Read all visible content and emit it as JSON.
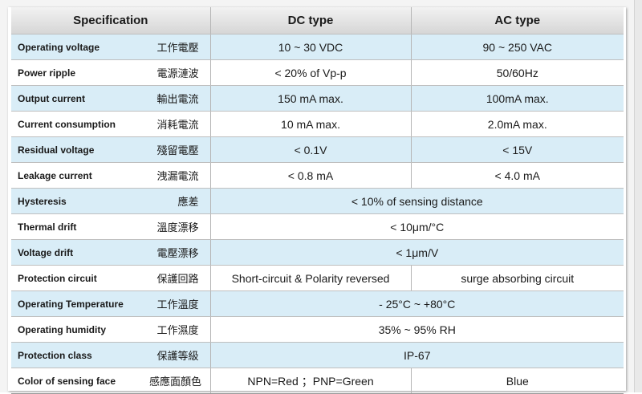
{
  "table": {
    "headers": {
      "spec": "Specification",
      "dc": "DC type",
      "ac": "AC type"
    },
    "rows": [
      {
        "en": "Operating voltage",
        "zh": "工作電壓",
        "dc": "10 ~ 30 VDC",
        "ac": "90 ~ 250 VAC"
      },
      {
        "en": "Power ripple",
        "zh": "電源漣波",
        "dc": "< 20% of Vp-p",
        "ac": "50/60Hz"
      },
      {
        "en": "Output current",
        "zh": "輸出電流",
        "dc": "150 mA max.",
        "ac": "100mA max."
      },
      {
        "en": "Current consumption",
        "zh": "消耗電流",
        "dc": "10 mA max.",
        "ac": "2.0mA max."
      },
      {
        "en": "Residual voltage",
        "zh": "殘留電壓",
        "dc": "< 0.1V",
        "ac": "< 15V"
      },
      {
        "en": "Leakage current",
        "zh": "洩漏電流",
        "dc": "< 0.8 mA",
        "ac": "< 4.0 mA"
      },
      {
        "en": "Hysteresis",
        "zh": "應差",
        "both": "< 10% of sensing distance"
      },
      {
        "en": "Thermal drift",
        "zh": "溫度漂移",
        "both": "< 10μm/°C"
      },
      {
        "en": "Voltage drift",
        "zh": "電壓漂移",
        "both": "< 1μm/V"
      },
      {
        "en": "Protection circuit",
        "zh": "保護回路",
        "dc": "Short-circuit & Polarity reversed",
        "ac": "surge absorbing circuit"
      },
      {
        "en": "Operating Temperature",
        "zh": "工作溫度",
        "both": "- 25°C ~ +80°C"
      },
      {
        "en": "Operating humidity",
        "zh": "工作濕度",
        "both": "35% ~ 95% RH"
      },
      {
        "en": "Protection class",
        "zh": "保護等級",
        "both": "IP-67"
      },
      {
        "en": "Color of sensing face",
        "zh": "感應面顏色",
        "dc": "NPN=Red ；PNP=Green",
        "ac": "Blue"
      }
    ]
  }
}
